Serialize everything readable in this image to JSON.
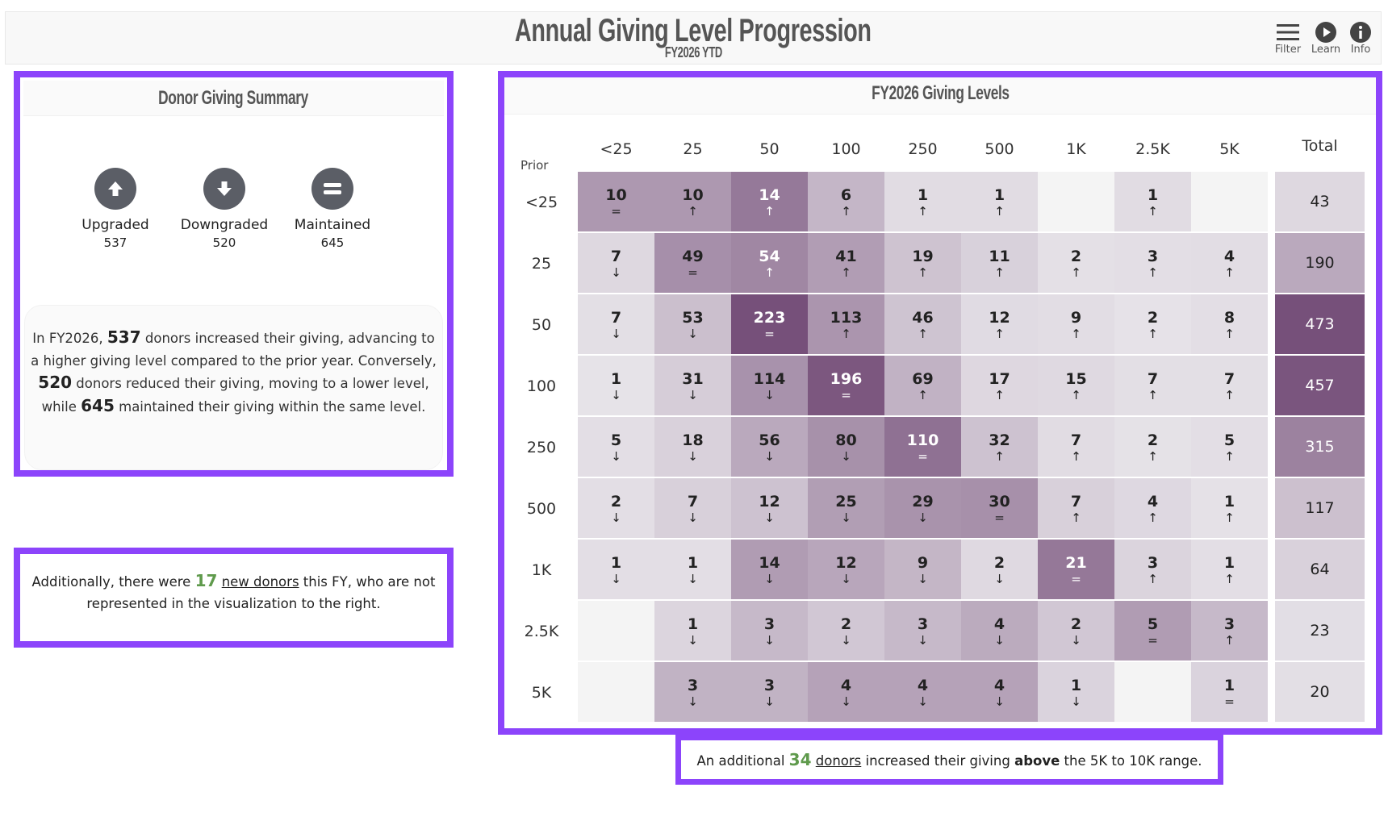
{
  "header": {
    "title": "Annual Giving Level Progression",
    "subtitle": "FY2026 YTD",
    "icons": [
      {
        "name": "filter-icon",
        "label": "Filter"
      },
      {
        "name": "learn-icon",
        "label": "Learn"
      },
      {
        "name": "info-icon",
        "label": "Info"
      }
    ]
  },
  "summary": {
    "title": "Donor Giving Summary",
    "stats": [
      {
        "label": "Upgraded",
        "value": "537",
        "icon": "arrow-up-circle"
      },
      {
        "label": "Downgraded",
        "value": "520",
        "icon": "arrow-down-circle"
      },
      {
        "label": "Maintained",
        "value": "645",
        "icon": "equals-circle"
      }
    ],
    "text": {
      "p1": "In FY2026,",
      "n1": "537",
      "p2": "donors increased their giving, advancing to a higher giving level compared to the prior year. Conversely,",
      "n2": "520",
      "p3": "donors reduced their giving, moving to a lower level, while",
      "n3": "645",
      "p4": "maintained their giving within the same level."
    }
  },
  "new_donors": {
    "p1": "Additionally, there were",
    "count": "17",
    "link": "new donors",
    "p2": "this FY, who are not represented in the visualization to the right."
  },
  "above_note": {
    "p1": "An additional",
    "count": "34",
    "link": "donors",
    "p2": "increased their giving",
    "bold": "above",
    "p3": "the 5K to 10K range."
  },
  "colors": {
    "accent": "#8c44fb",
    "dark": "#76507a",
    "light": "#eeedf0",
    "empty": "#f4f4f4",
    "green": "#5f9a4c"
  },
  "chart_data": {
    "type": "heatmap",
    "title": "FY2026 Giving Levels",
    "row_axis_label": "Prior",
    "columns": [
      "<25",
      "25",
      "50",
      "100",
      "250",
      "500",
      "1K",
      "2.5K",
      "5K"
    ],
    "total_label": "Total",
    "rows": [
      {
        "label": "<25",
        "values": [
          10,
          10,
          14,
          6,
          1,
          1,
          null,
          1,
          null
        ],
        "total": 43
      },
      {
        "label": "25",
        "values": [
          7,
          49,
          54,
          41,
          19,
          11,
          2,
          3,
          4
        ],
        "total": 190
      },
      {
        "label": "50",
        "values": [
          7,
          53,
          223,
          113,
          46,
          12,
          9,
          2,
          8
        ],
        "total": 473
      },
      {
        "label": "100",
        "values": [
          1,
          31,
          114,
          196,
          69,
          17,
          15,
          7,
          7
        ],
        "total": 457
      },
      {
        "label": "250",
        "values": [
          5,
          18,
          56,
          80,
          110,
          32,
          7,
          2,
          5
        ],
        "total": 315
      },
      {
        "label": "500",
        "values": [
          2,
          7,
          12,
          25,
          29,
          30,
          7,
          4,
          1
        ],
        "total": 117
      },
      {
        "label": "1K",
        "values": [
          1,
          1,
          14,
          12,
          9,
          2,
          21,
          3,
          1
        ],
        "total": 64
      },
      {
        "label": "2.5K",
        "values": [
          null,
          1,
          3,
          2,
          3,
          4,
          2,
          5,
          3
        ],
        "total": 23
      },
      {
        "label": "5K",
        "values": [
          null,
          3,
          3,
          4,
          4,
          4,
          1,
          null,
          1
        ],
        "total": 20
      }
    ],
    "indicators": {
      "up": "↑",
      "down": "↓",
      "same": "="
    }
  }
}
